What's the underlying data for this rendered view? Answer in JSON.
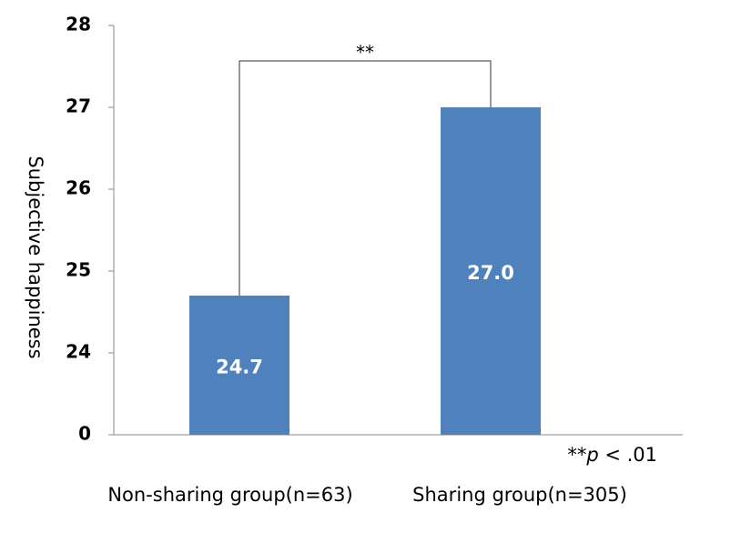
{
  "chart_data": {
    "type": "bar",
    "y_label": "Subjective happiness",
    "categories": [
      "Non-sharing group(n=63)",
      "Sharing group(n=305)"
    ],
    "values": [
      24.7,
      27.0
    ],
    "value_labels": [
      "24.7",
      "27.0"
    ],
    "color": "#4f81bd",
    "ylim": [
      0,
      28
    ],
    "yticks": [
      0,
      24,
      25,
      26,
      27,
      28
    ],
    "axis_break": true,
    "grid": false,
    "significance": "**",
    "footnote_parts": [
      "**",
      "p",
      " < .01"
    ]
  }
}
